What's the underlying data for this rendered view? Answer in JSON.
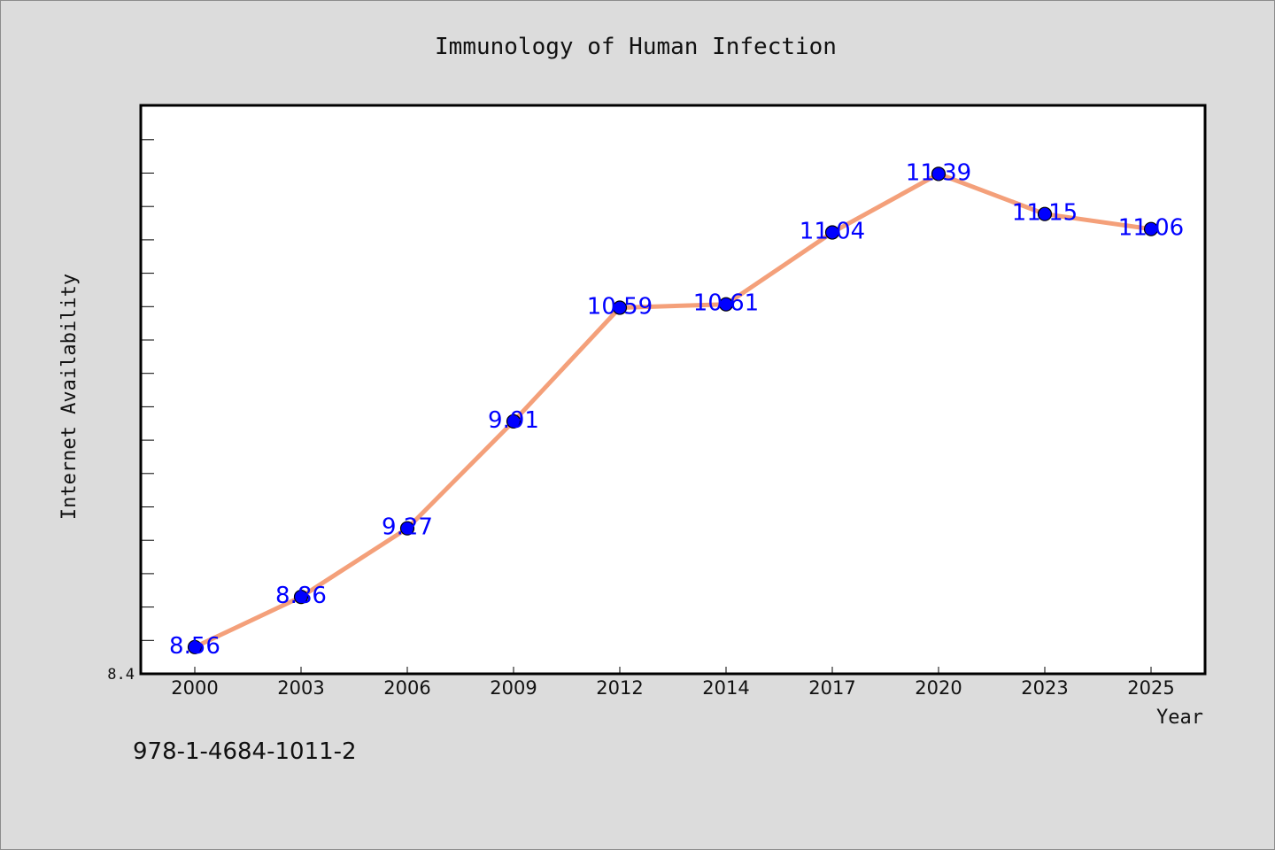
{
  "chart_data": {
    "type": "line",
    "title": "Immunology of Human Infection",
    "xlabel": "Year",
    "ylabel": "Internet Availability",
    "categories": [
      "2000",
      "2003",
      "2006",
      "2009",
      "2012",
      "2014",
      "2017",
      "2020",
      "2023",
      "2025"
    ],
    "series": [
      {
        "values": [
          8.56,
          8.86,
          9.27,
          9.91,
          10.59,
          10.61,
          11.04,
          11.39,
          11.15,
          11.06
        ]
      }
    ],
    "data_labels": [
      "8.56",
      "8.86",
      "9.27",
      "9.91",
      "10.59",
      "10.61",
      "11.04",
      "11.39",
      "11.15",
      "11.06"
    ],
    "y_tick_labels": [
      "8.4"
    ],
    "ylim": [
      8.4,
      11.8
    ],
    "grid": false,
    "line_color": "#f4a07a",
    "marker_color": "#0000ff",
    "label_color": "#0000ff"
  },
  "footer": {
    "isbn": "978-1-4684-1011-2"
  }
}
